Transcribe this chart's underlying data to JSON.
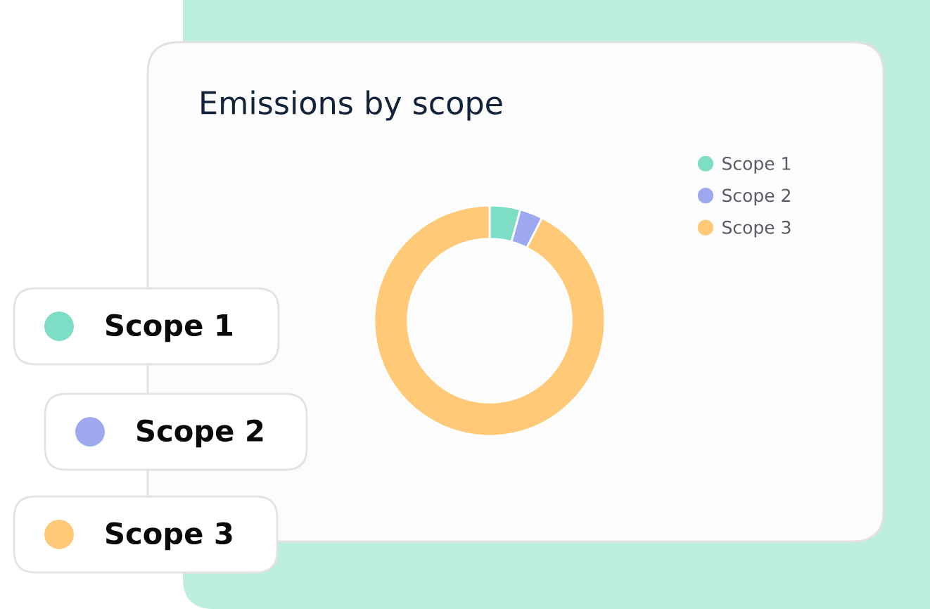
{
  "chart_data": {
    "type": "donut",
    "title": "Emissions by scope",
    "categories": [
      "Scope 1",
      "Scope 2",
      "Scope 3"
    ],
    "values": [
      4.3,
      3.2,
      92.5
    ],
    "colors": [
      "#7ddec5",
      "#9ea8ef",
      "#ffc977"
    ],
    "legend": "top right"
  }
}
